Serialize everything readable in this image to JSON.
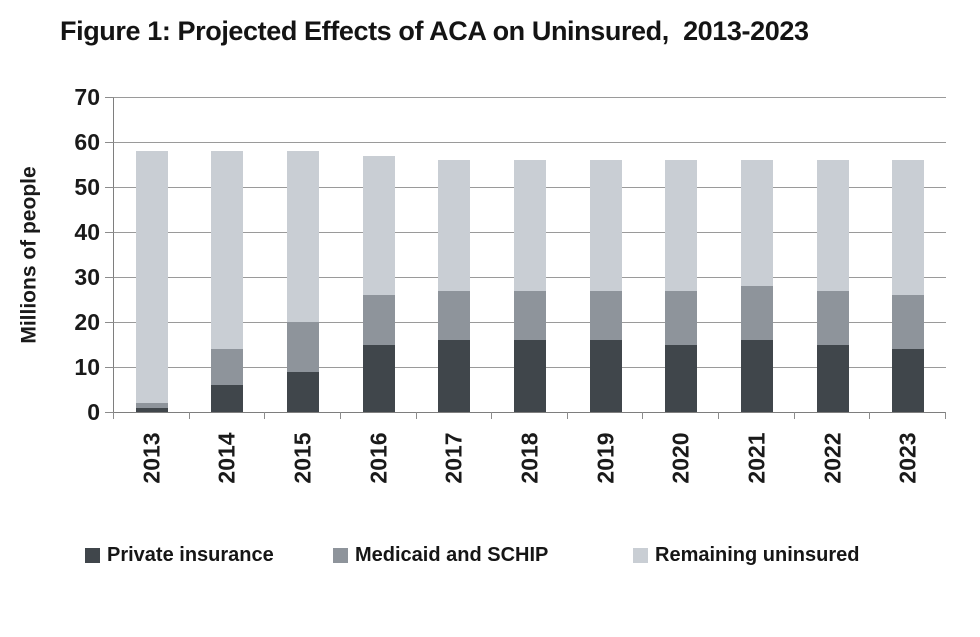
{
  "title": "Figure 1: Projected Effects of ACA on Uninsured,  2013-2023",
  "colors": {
    "private_insurance": "#40464b",
    "medicaid_schip": "#8e949b",
    "remaining_uninsured": "#c9ced4",
    "gridline": "#9a9a9a",
    "axis": "#7e7e7e"
  },
  "chart_data": {
    "type": "bar",
    "stacked": true,
    "title": "Figure 1: Projected Effects of ACA on Uninsured,  2013-2023",
    "xlabel": "",
    "ylabel": "Millions of people",
    "ylim": [
      0,
      70
    ],
    "ytick_step": 10,
    "yticks": [
      0,
      10,
      20,
      30,
      40,
      50,
      60,
      70
    ],
    "grid": true,
    "legend_position": "bottom",
    "categories": [
      "2013",
      "2014",
      "2015",
      "2016",
      "2017",
      "2018",
      "2019",
      "2020",
      "2021",
      "2022",
      "2023"
    ],
    "series": [
      {
        "name": "Private insurance",
        "color": "#40464b",
        "values": [
          1,
          6,
          9,
          15,
          16,
          16,
          16,
          15,
          16,
          15,
          14
        ]
      },
      {
        "name": "Medicaid and SCHIP",
        "color": "#8e949b",
        "values": [
          1,
          8,
          11,
          11,
          11,
          11,
          11,
          12,
          12,
          12,
          12
        ]
      },
      {
        "name": "Remaining uninsured",
        "color": "#c9ced4",
        "values": [
          56,
          44,
          38,
          31,
          29,
          29,
          29,
          29,
          28,
          29,
          30
        ]
      }
    ],
    "totals": [
      58,
      58,
      58,
      57,
      56,
      56,
      56,
      56,
      56,
      56,
      56
    ]
  }
}
